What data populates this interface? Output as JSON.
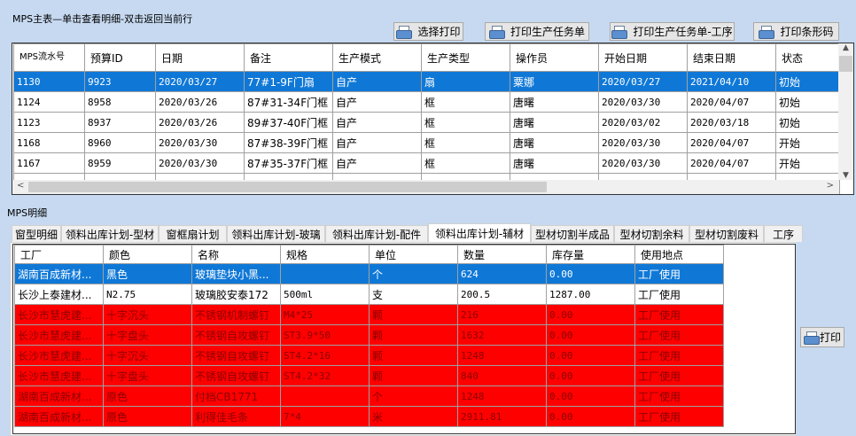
{
  "master": {
    "title": "MPS主表—单击查看明细-双击返回当前行",
    "buttons": [
      "选择打印",
      "打印生产任务单",
      "打印生产任务单-工序",
      "打印条形码"
    ],
    "columns": [
      "MPS流水号",
      "预算ID",
      "日期",
      "备注",
      "生产模式",
      "生产类型",
      "操作员",
      "开始日期",
      "结束日期",
      "状态"
    ],
    "rows": [
      [
        "1130",
        "9923",
        "2020/03/27",
        "77#1-9F门扇",
        "自产",
        "扇",
        "粟娜",
        "2020/03/27",
        "2021/04/10",
        "初始"
      ],
      [
        "1124",
        "8958",
        "2020/03/26",
        "87#31-34F门框",
        "自产",
        "框",
        "唐曙",
        "2020/03/30",
        "2020/04/07",
        "初始"
      ],
      [
        "1123",
        "8937",
        "2020/03/26",
        "89#37-40F门框",
        "自产",
        "框",
        "唐曙",
        "2020/03/02",
        "2020/03/18",
        "初始"
      ],
      [
        "1168",
        "8960",
        "2020/03/30",
        "87#38-39F门框",
        "自产",
        "框",
        "唐曙",
        "2020/03/30",
        "2020/04/07",
        "开始"
      ],
      [
        "1167",
        "8959",
        "2020/03/30",
        "87#35-37F门框",
        "自产",
        "框",
        "唐曙",
        "2020/03/30",
        "2020/04/07",
        "开始"
      ]
    ],
    "selected_row": 0
  },
  "detail": {
    "title": "MPS明细",
    "tabs": [
      "窗型明细",
      "领料出库计划-型材",
      "窗框扇计划",
      "领料出库计划-玻璃",
      "领料出库计划-配件",
      "领料出库计划-辅材",
      "型材切割半成品",
      "型材切割余料",
      "型材切割废料",
      "工序"
    ],
    "active_tab": 5,
    "columns": [
      "工厂",
      "颜色",
      "名称",
      "规格",
      "单位",
      "数量",
      "库存量",
      "使用地点"
    ],
    "rows": [
      [
        "湖南百成新材...",
        "黑色",
        "玻璃垫块小黑...",
        "",
        "个",
        "624",
        "0.00",
        "工厂使用"
      ],
      [
        "长沙上泰建材...",
        "N2.75",
        "玻璃胶安泰172",
        "500ml",
        "支",
        "200.5",
        "1287.00",
        "工厂使用"
      ],
      [
        "长沙市慧虎建...",
        "十字沉头",
        "不锈钢机制螺钉",
        "M4*25",
        "颗",
        "216",
        "0.00",
        "工厂使用"
      ],
      [
        "长沙市慧虎建...",
        "十字盘头",
        "不锈钢自攻螺钉",
        "ST3.9*50",
        "颗",
        "1632",
        "0.00",
        "工厂使用"
      ],
      [
        "长沙市慧虎建...",
        "十字沉头",
        "不锈钢自攻螺钉",
        "ST4.2*16",
        "颗",
        "1248",
        "0.00",
        "工厂使用"
      ],
      [
        "长沙市慧虎建...",
        "十字盘头",
        "不锈钢自攻螺钉",
        "ST4.2*32",
        "颗",
        "840",
        "0.00",
        "工厂使用"
      ],
      [
        "湖南百成新材...",
        "原色",
        "付档CB1771",
        "",
        "个",
        "1248",
        "0.00",
        "工厂使用"
      ],
      [
        "湖南百成新材...",
        "原色",
        "利得佳毛条",
        "7*4",
        "米",
        "2911.81",
        "0.00",
        "工厂使用"
      ]
    ],
    "row_styles": [
      "selected",
      "normal",
      "red",
      "red",
      "red",
      "red",
      "red",
      "red"
    ],
    "print_button": "打印"
  },
  "colors": {
    "selected": "#0f78d7",
    "warning_row": "#ff0000",
    "background": "#c6d9f0"
  }
}
